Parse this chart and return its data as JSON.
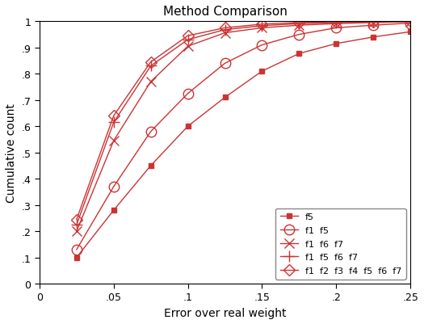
{
  "title": "Method Comparison",
  "xlabel": "Error over real weight",
  "ylabel": "Cumulative count",
  "xlim": [
    0,
    0.25
  ],
  "ylim": [
    0,
    1.0
  ],
  "color": "#cc3333",
  "series": [
    {
      "label": "f5",
      "marker": "s",
      "markersize": 4,
      "filled": true,
      "x": [
        0.025,
        0.05,
        0.075,
        0.1,
        0.125,
        0.15,
        0.175,
        0.2,
        0.225,
        0.25
      ],
      "y": [
        0.1,
        0.28,
        0.45,
        0.6,
        0.71,
        0.81,
        0.877,
        0.915,
        0.94,
        0.96
      ]
    },
    {
      "label": "f1  f5",
      "marker": "o",
      "markersize": 9,
      "filled": false,
      "x": [
        0.025,
        0.05,
        0.075,
        0.1,
        0.125,
        0.15,
        0.175,
        0.2,
        0.225,
        0.25
      ],
      "y": [
        0.13,
        0.37,
        0.58,
        0.725,
        0.84,
        0.91,
        0.95,
        0.975,
        0.985,
        0.993
      ]
    },
    {
      "label": "f1  f6  f7",
      "marker": "x",
      "markersize": 8,
      "filled": true,
      "x": [
        0.025,
        0.05,
        0.075,
        0.1,
        0.125,
        0.15,
        0.175,
        0.2,
        0.225,
        0.25
      ],
      "y": [
        0.2,
        0.545,
        0.77,
        0.905,
        0.956,
        0.975,
        0.985,
        0.991,
        0.995,
        0.998
      ]
    },
    {
      "label": "f1  f5  f6  f7",
      "marker": "+",
      "markersize": 10,
      "filled": true,
      "x": [
        0.025,
        0.05,
        0.075,
        0.1,
        0.125,
        0.15,
        0.175,
        0.2,
        0.225,
        0.25
      ],
      "y": [
        0.225,
        0.615,
        0.83,
        0.93,
        0.968,
        0.983,
        0.991,
        0.995,
        0.998,
        1.0
      ]
    },
    {
      "label": "f1  f2  f3  f4  f5  f6  f7",
      "marker": "D",
      "markersize": 7,
      "filled": false,
      "x": [
        0.025,
        0.05,
        0.075,
        0.1,
        0.125,
        0.15,
        0.175,
        0.2,
        0.225,
        0.25
      ],
      "y": [
        0.245,
        0.64,
        0.845,
        0.945,
        0.975,
        0.989,
        0.995,
        0.998,
        0.999,
        1.0
      ]
    }
  ]
}
